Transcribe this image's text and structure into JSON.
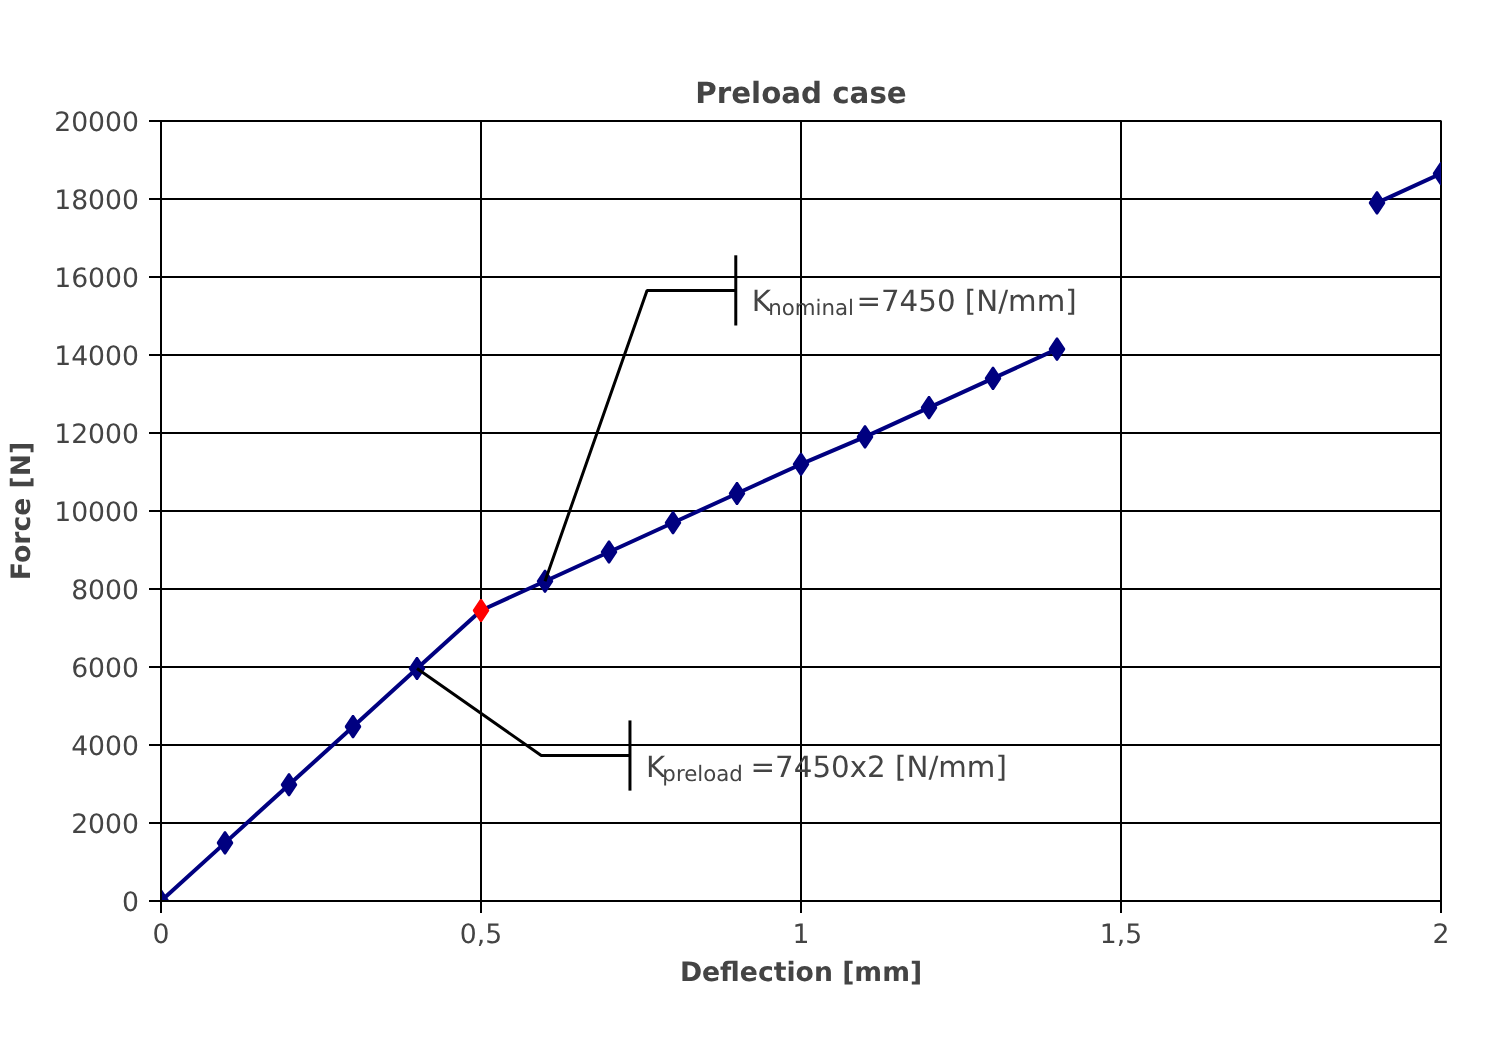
{
  "chart_data": {
    "type": "line",
    "title": "Preload case",
    "xlabel": "Deflection [mm]",
    "ylabel": "Force [N]",
    "x": [
      0,
      0.1,
      0.2,
      0.3,
      0.4,
      0.5,
      0.6,
      0.7,
      0.8,
      0.9,
      1.0,
      1.1,
      1.2,
      1.3,
      1.4,
      1.5,
      1.6,
      1.7,
      1.8,
      1.9,
      2.0
    ],
    "series": [
      {
        "color": "#000080",
        "colors": [
          "#000080",
          "#000080",
          "#000080",
          "#000080",
          "#000080",
          "#ff0000",
          "#000080",
          "#000080",
          "#000080",
          "#000080",
          "#000080",
          "#000080",
          "#000080",
          "#000080",
          "#000080",
          "#000080",
          "#000080",
          "#000080",
          "#000080",
          "#000080",
          "#000080"
        ],
        "values": [
          0,
          1490,
          2980,
          4470,
          5960,
          7450,
          8200,
          8950,
          9700,
          10450,
          11200,
          11900,
          12650,
          13400,
          14150,
          null,
          null,
          null,
          null,
          17900,
          18650
        ]
      }
    ],
    "xlim": [
      0,
      2
    ],
    "xticks": [
      0,
      {
        "value": 0.5,
        "label": "0,5"
      },
      1,
      {
        "value": 1.5,
        "label": "1,5"
      },
      2
    ],
    "ylim": [
      0,
      20000
    ],
    "yticks": [
      0,
      2000,
      4000,
      6000,
      8000,
      10000,
      12000,
      14000,
      16000,
      18000,
      20000
    ],
    "grid": true,
    "marker": "diamond",
    "line_style": "solid",
    "annotations": [
      {
        "text": "K$_{nominal}$=7450 [N/mm]",
        "x": 0.6,
        "y": 8200
      },
      {
        "text": "K$_{preload}$=7450x2 [N/mm]",
        "x": 0.4,
        "y": 5960
      }
    ]
  }
}
